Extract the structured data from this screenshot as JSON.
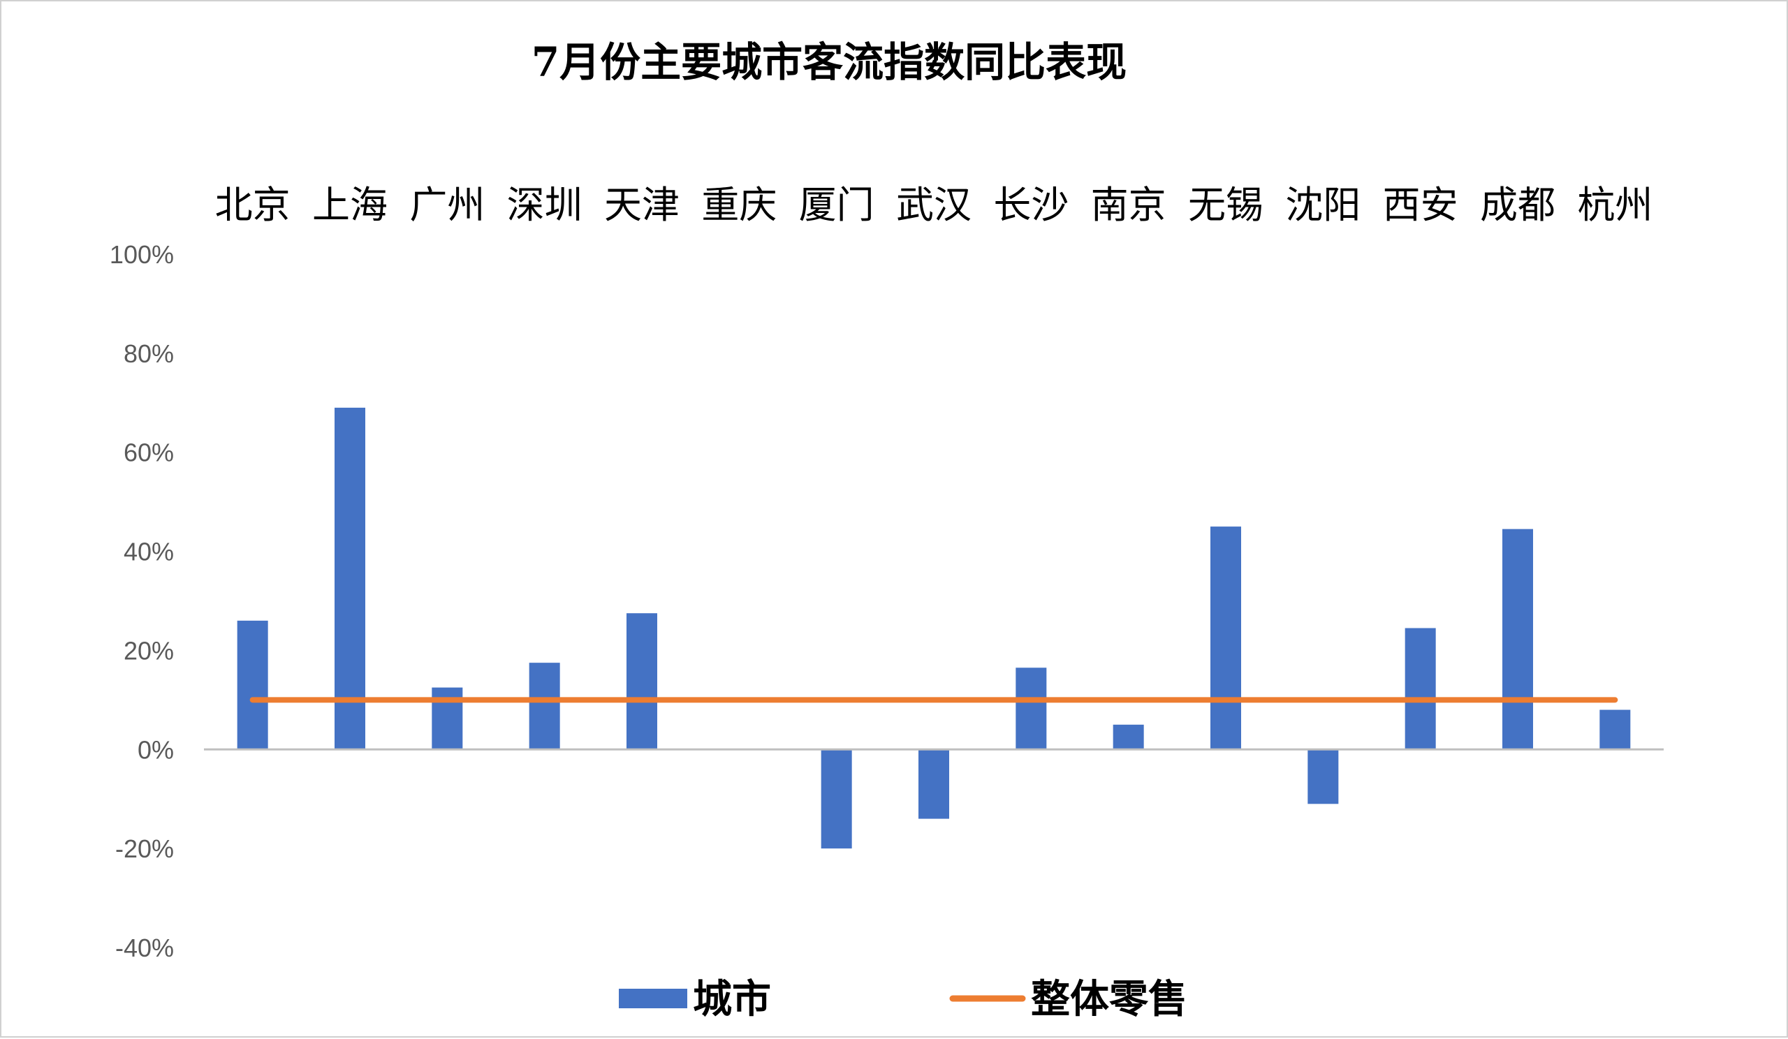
{
  "chart_data": {
    "type": "bar",
    "title": "7月份主要城市客流指数同比表现",
    "categories": [
      "北京",
      "上海",
      "广州",
      "深圳",
      "天津",
      "重庆",
      "厦门",
      "武汉",
      "长沙",
      "南京",
      "无锡",
      "沈阳",
      "西安",
      "成都",
      "杭州"
    ],
    "series": [
      {
        "name": "城市",
        "type": "bar",
        "color": "#4472C4",
        "values": [
          26,
          69,
          12.5,
          17.5,
          27.5,
          0,
          -20,
          -14,
          16.5,
          5,
          45,
          -11,
          24.5,
          44.5,
          8
        ]
      },
      {
        "name": "整体零售",
        "type": "line",
        "color": "#ED7D31",
        "values": [
          10,
          10,
          10,
          10,
          10,
          10,
          10,
          10,
          10,
          10,
          10,
          10,
          10,
          10,
          10
        ]
      }
    ],
    "yaxis": {
      "min": -40,
      "max": 100,
      "ticks": [
        "100%",
        "80%",
        "60%",
        "40%",
        "20%",
        "0%",
        "-20%",
        "-40%"
      ],
      "tick_values": [
        100,
        80,
        60,
        40,
        20,
        0,
        -20,
        -40
      ]
    },
    "category_labels_position": "top",
    "grid": false,
    "legend_position": "bottom"
  }
}
